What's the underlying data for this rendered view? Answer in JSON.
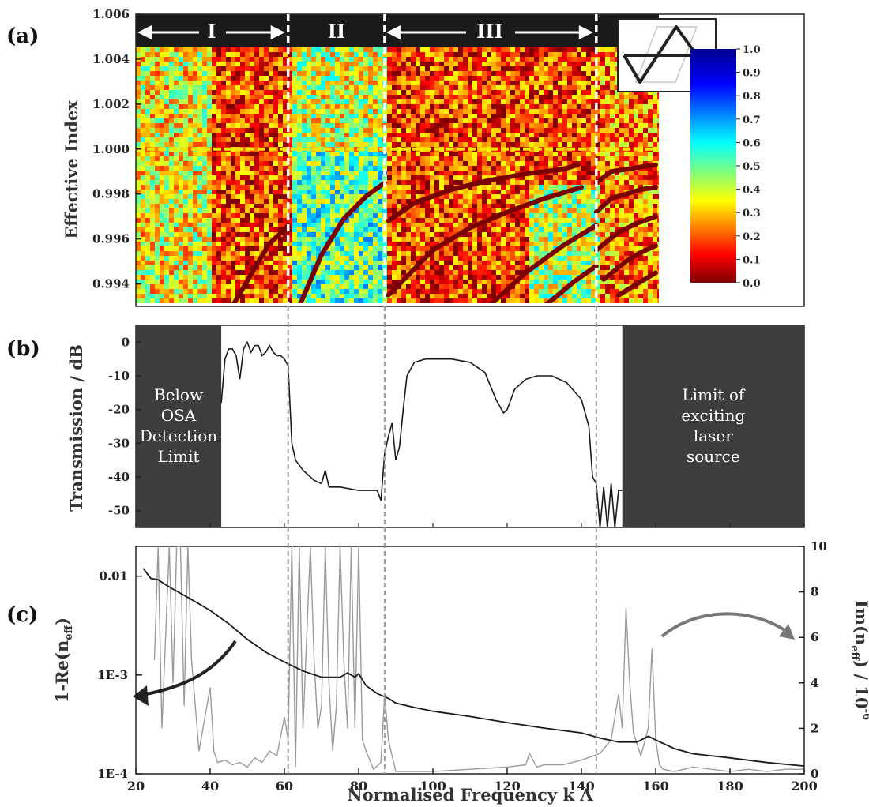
{
  "panel_labels": [
    "(a)",
    "(b)",
    "(c)"
  ],
  "colors": {
    "band_black": "#1a1a1a",
    "shade_box": "#3d3d3d",
    "index_one_line": "#f2e600",
    "divider": "#ffffff",
    "guide": "#9a9a9a",
    "curve_real": "#1a1a1a",
    "curve_imag": "#9a9a9a"
  },
  "shared_x": {
    "label": "Normalised Frequency k Λ",
    "ticks": [
      "20",
      "40",
      "60",
      "80",
      "100",
      "120",
      "140",
      "160",
      "180",
      "200"
    ],
    "lim": [
      20,
      200
    ]
  },
  "dividers": [
    61,
    87,
    144
  ],
  "regions": [
    "I",
    "II",
    "III"
  ],
  "inset_icon": "kagome-unit-cell-icon",
  "chart_data": [
    {
      "type": "heatmap",
      "panel": "(a)",
      "title": "",
      "ylabel": "Effective Index",
      "ylim": [
        0.993,
        1.006
      ],
      "yticks": [
        "0.994",
        "0.996",
        "0.998",
        "1.000",
        "1.002",
        "1.004",
        "1.006"
      ],
      "xlim": [
        20,
        160
      ],
      "colorbar": {
        "range": [
          0,
          1
        ],
        "ticks": [
          "1.0",
          "0.9",
          "0.8",
          "0.7",
          "0.6",
          "0.5",
          "0.4",
          "0.3",
          "0.2",
          "0.1",
          "0.0"
        ]
      },
      "index_one_line": 1.0,
      "mode_curves": [
        {
          "x": [
            46,
            52,
            56,
            60,
            61
          ],
          "y": [
            0.993,
            0.9947,
            0.9958,
            0.9964,
            0.9966
          ]
        },
        {
          "x": [
            64,
            70,
            76,
            82,
            87
          ],
          "y": [
            0.993,
            0.9953,
            0.9969,
            0.9979,
            0.9985
          ]
        },
        {
          "x": [
            88,
            95,
            105,
            115,
            125,
            135,
            139
          ],
          "y": [
            0.9968,
            0.9976,
            0.9982,
            0.9986,
            0.9989,
            0.9991,
            0.9993
          ]
        },
        {
          "x": [
            88,
            100,
            110,
            120,
            130,
            140
          ],
          "y": [
            0.9935,
            0.9955,
            0.9965,
            0.9972,
            0.9978,
            0.9983
          ]
        },
        {
          "x": [
            115,
            125,
            135,
            144
          ],
          "y": [
            0.993,
            0.9945,
            0.9957,
            0.9966
          ]
        },
        {
          "x": [
            130,
            138,
            144
          ],
          "y": [
            0.993,
            0.9941,
            0.9948
          ]
        },
        {
          "x": [
            144,
            148,
            152,
            156,
            160
          ],
          "y": [
            0.9985,
            0.999,
            0.9991,
            0.9992,
            0.9993
          ]
        },
        {
          "x": [
            144,
            148,
            152,
            156,
            160
          ],
          "y": [
            0.9972,
            0.9978,
            0.998,
            0.9982,
            0.9983
          ]
        },
        {
          "x": [
            144,
            150,
            155,
            160
          ],
          "y": [
            0.9955,
            0.9963,
            0.9967,
            0.997
          ]
        },
        {
          "x": [
            146,
            152,
            156,
            160
          ],
          "y": [
            0.9942,
            0.995,
            0.9954,
            0.9957
          ]
        },
        {
          "x": [
            150,
            155,
            160
          ],
          "y": [
            0.9935,
            0.994,
            0.9945
          ]
        }
      ]
    },
    {
      "type": "line",
      "panel": "(b)",
      "title": "",
      "ylabel": "Transmission / dB",
      "ylim": [
        -55,
        5
      ],
      "yticks": [
        "0",
        "-10",
        "-20",
        "-30",
        "-40",
        "-50"
      ],
      "xlim": [
        20,
        200
      ],
      "shaded_boxes": [
        {
          "x0": 20,
          "x1": 43,
          "label": [
            "Below",
            "OSA",
            "Detection",
            "Limit"
          ]
        },
        {
          "x0": 151,
          "x1": 200,
          "label": [
            "Limit of",
            "exciting",
            "laser",
            "source"
          ]
        }
      ],
      "series": [
        {
          "x": [
            43,
            44,
            45,
            46,
            47,
            48,
            49,
            50,
            51,
            52,
            53,
            54,
            55,
            56,
            57,
            58,
            59,
            60,
            61,
            62,
            63,
            65,
            68,
            70,
            71,
            72,
            75,
            80,
            85,
            86,
            87,
            88,
            89,
            90,
            91,
            92,
            93,
            95,
            98,
            100,
            105,
            110,
            114,
            117,
            119,
            120,
            122,
            125,
            128,
            132,
            136,
            140,
            142,
            143,
            144,
            145,
            146,
            147,
            148,
            149,
            150,
            151
          ],
          "y": [
            -18,
            -5,
            -2,
            -2,
            -4,
            -11,
            -2,
            0,
            -3,
            -1,
            -1,
            -4,
            -3,
            -1,
            -3,
            -4,
            -4,
            -5,
            -7,
            -30,
            -35,
            -38,
            -41,
            -42,
            -38,
            -43,
            -43,
            -44,
            -44,
            -47,
            -33,
            -28,
            -24,
            -35,
            -31,
            -20,
            -10,
            -6,
            -5,
            -5,
            -5,
            -6,
            -9,
            -17,
            -21,
            -20,
            -14,
            -11,
            -10,
            -10,
            -12,
            -17,
            -25,
            -40,
            -42,
            -55,
            -43,
            -55,
            -42,
            -55,
            -44,
            -44
          ]
        }
      ]
    },
    {
      "type": "line",
      "panel": "(c)",
      "title": "",
      "ylabel": "1-Re(n_eff)",
      "yscale": "log",
      "ylim": [
        0.0001,
        0.02
      ],
      "yticks": [
        "0.01",
        "1E-3",
        "1E-4"
      ],
      "y2label": "Im(n_eff) / 10^-6",
      "y2lim": [
        0,
        10
      ],
      "y2ticks": [
        "0",
        "2",
        "4",
        "6",
        "8",
        "10"
      ],
      "xlim": [
        20,
        200
      ],
      "series": [
        {
          "axis": "left",
          "x": [
            22,
            24,
            26,
            28,
            30,
            35,
            40,
            45,
            50,
            55,
            60,
            65,
            70,
            75,
            77,
            79,
            80,
            82,
            85,
            88,
            90,
            95,
            100,
            110,
            120,
            130,
            140,
            145,
            150,
            155,
            158,
            160,
            165,
            170,
            180,
            190,
            200
          ],
          "y": [
            0.012,
            0.0095,
            0.0092,
            0.0082,
            0.0074,
            0.0058,
            0.0045,
            0.0033,
            0.0023,
            0.0017,
            0.00135,
            0.0011,
            0.00095,
            0.00095,
            0.00105,
            0.00095,
            0.00103,
            0.00078,
            0.00065,
            0.00058,
            0.00052,
            0.00047,
            0.00043,
            0.00038,
            0.00033,
            0.00029,
            0.00026,
            0.00023,
            0.00021,
            0.00021,
            0.00024,
            0.00022,
            0.00018,
            0.00016,
            0.000145,
            0.00013,
            0.00012
          ]
        },
        {
          "axis": "right",
          "x": [
            25,
            26,
            27,
            28,
            29,
            30,
            31,
            32,
            33,
            34,
            35,
            37,
            40,
            41,
            42,
            44,
            46,
            48,
            50,
            52,
            54,
            56,
            58,
            60,
            61,
            62,
            63,
            64,
            65,
            67,
            68,
            69,
            70,
            71,
            72,
            73,
            74,
            75,
            76,
            77,
            78,
            79,
            80,
            81,
            82,
            84,
            86,
            87,
            88,
            89,
            90,
            95,
            100,
            110,
            120,
            125,
            126,
            128,
            130,
            135,
            140,
            145,
            148,
            150,
            151,
            152,
            153,
            154,
            156,
            158,
            159,
            160,
            161,
            162,
            165,
            170,
            175,
            180,
            185,
            190,
            195,
            200
          ],
          "y": [
            5,
            10,
            2,
            6,
            10,
            4,
            10,
            10,
            3,
            10,
            5,
            1,
            3.8,
            1,
            0.5,
            0.6,
            0.4,
            0.5,
            0.3,
            0.7,
            0.5,
            1,
            0.8,
            2.5,
            1.5,
            10,
            0.3,
            10,
            2,
            10,
            5,
            2,
            3,
            10,
            4,
            1,
            3,
            10,
            5,
            2,
            10,
            2,
            10,
            1.5,
            1,
            0.2,
            0.5,
            3.5,
            1.5,
            0.8,
            0.1,
            0.1,
            0.1,
            0.2,
            0.3,
            0.4,
            0.9,
            0.3,
            0.4,
            0.4,
            0.6,
            0.9,
            1.5,
            3.5,
            2,
            7.3,
            4,
            1.8,
            0.8,
            2,
            5.5,
            1.5,
            0.4,
            0.2,
            0.1,
            0.3,
            0.2,
            0.1,
            0.2,
            0.1,
            0.2,
            0.2
          ]
        }
      ]
    }
  ]
}
